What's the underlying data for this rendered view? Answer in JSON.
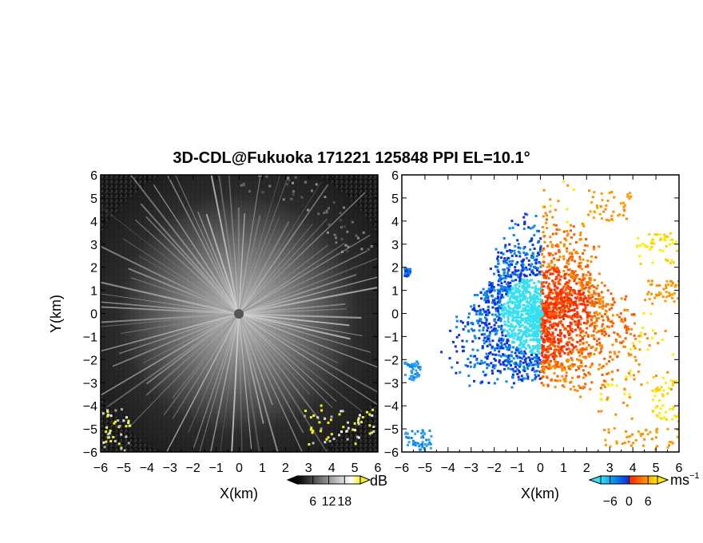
{
  "title": "3D-CDL@Fukuoka 171221 125848 PPI EL=10.1°",
  "chart_data": [
    {
      "type": "heatmap",
      "panel": "left",
      "quantity": "SNR",
      "xlabel": "X(km)",
      "ylabel": "Y(km)",
      "xlim": [
        -6,
        6
      ],
      "ylim": [
        -6,
        6
      ],
      "xticks": [
        "−6",
        "−5",
        "−4",
        "−3",
        "−2",
        "−1",
        "0",
        "1",
        "2",
        "3",
        "4",
        "5",
        "6"
      ],
      "yticks": [
        "−6",
        "−5",
        "−4",
        "−3",
        "−2",
        "−1",
        "0",
        "1",
        "2",
        "3",
        "4",
        "5",
        "6"
      ],
      "colorbar": {
        "unit": "dB",
        "ticks": [
          "6",
          "12",
          "18"
        ],
        "tick_values": [
          6,
          12,
          18
        ],
        "range": [
          0,
          24
        ],
        "colors": [
          "#000000",
          "#ffffff",
          "#f5f025"
        ],
        "extend": "both"
      }
    },
    {
      "type": "heatmap",
      "panel": "right",
      "quantity": "Doppler velocity",
      "xlabel": "X(km)",
      "ylabel": "",
      "xlim": [
        -6,
        6
      ],
      "ylim": [
        -6,
        6
      ],
      "xticks": [
        "−6",
        "−5",
        "−4",
        "−3",
        "−2",
        "−1",
        "0",
        "1",
        "2",
        "3",
        "4",
        "5",
        "6"
      ],
      "yticks": [
        "−6",
        "−5",
        "−4",
        "−3",
        "−2",
        "−1",
        "0",
        "1",
        "2",
        "3",
        "4",
        "5",
        "6"
      ],
      "colorbar": {
        "unit": "ms",
        "unit_exponent": "−1",
        "ticks": [
          "−6",
          "0",
          "6"
        ],
        "tick_values": [
          -6,
          0,
          6
        ],
        "range": [
          -9,
          9
        ],
        "colors": [
          "#36e0f0",
          "#0a8ae8",
          "#1030e8",
          "#ff2a00",
          "#ff8c00",
          "#ffee00"
        ],
        "extend": "both"
      }
    }
  ]
}
